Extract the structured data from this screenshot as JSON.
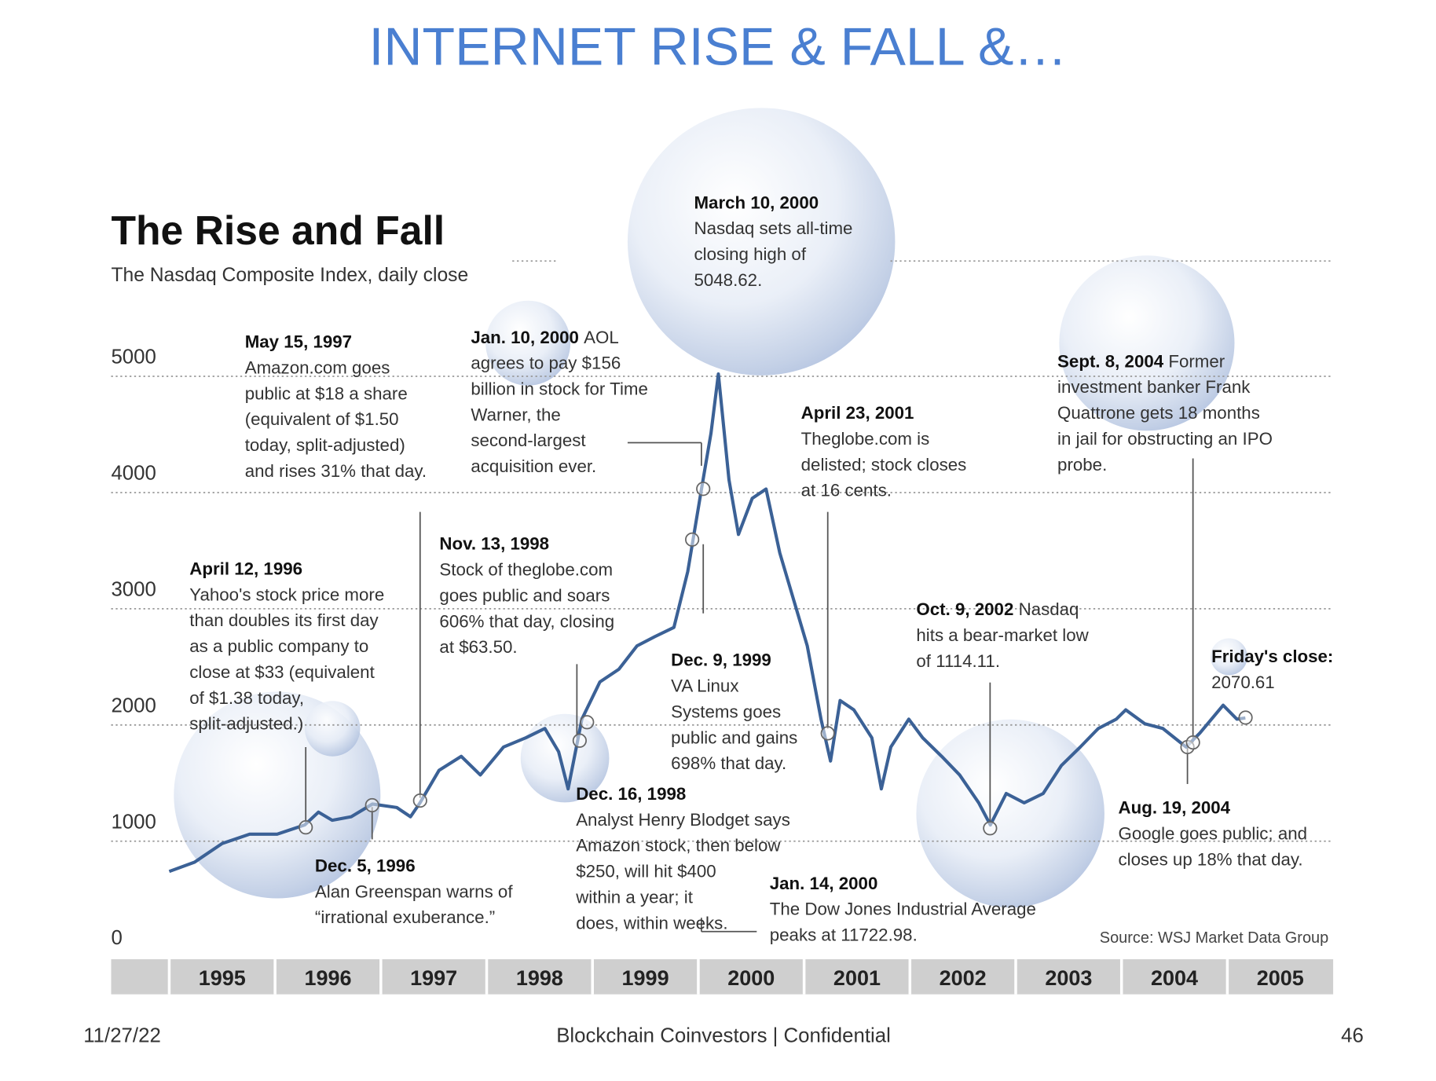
{
  "slide": {
    "title": "INTERNET RISE & FALL &…",
    "date": "11/27/22",
    "footer": "Blockchain Coinvestors | Confidential",
    "page": "46"
  },
  "chart_data": {
    "type": "line",
    "title": "The Rise and Fall",
    "subtitle": "The Nasdaq Composite Index, daily close",
    "source": "Source: WSJ Market Data Group",
    "x": [
      1995.0,
      1995.24,
      1995.5,
      1995.76,
      1996.02,
      1996.28,
      1996.41,
      1996.54,
      1996.72,
      1996.92,
      1997.15,
      1997.28,
      1997.37,
      1997.55,
      1997.76,
      1997.94,
      1998.16,
      1998.37,
      1998.55,
      1998.68,
      1998.77,
      1998.9,
      1999.07,
      1999.25,
      1999.42,
      1999.59,
      1999.77,
      1999.9,
      2000.03,
      2000.12,
      2000.19,
      2000.29,
      2000.38,
      2000.51,
      2000.64,
      2000.77,
      2000.9,
      2001.03,
      2001.16,
      2001.25,
      2001.34,
      2001.47,
      2001.64,
      2001.73,
      2001.82,
      2001.99,
      2002.12,
      2002.3,
      2002.47,
      2002.65,
      2002.76,
      2002.91,
      2003.08,
      2003.26,
      2003.43,
      2003.61,
      2003.78,
      2003.95,
      2004.04,
      2004.22,
      2004.39,
      2004.61,
      2004.74,
      2004.96,
      2005.09,
      2005.17
    ],
    "values": [
      740,
      820,
      980,
      1060,
      1060,
      1140,
      1250,
      1180,
      1210,
      1320,
      1290,
      1210,
      1330,
      1610,
      1730,
      1570,
      1810,
      1890,
      1970,
      1770,
      1450,
      2050,
      2370,
      2480,
      2680,
      2760,
      2840,
      3320,
      4030,
      4510,
      5020,
      4110,
      3640,
      3950,
      4030,
      3480,
      3080,
      2680,
      2050,
      1690,
      2210,
      2130,
      1890,
      1450,
      1810,
      2050,
      1890,
      1730,
      1570,
      1330,
      1140,
      1410,
      1330,
      1410,
      1650,
      1810,
      1970,
      2050,
      2130,
      2010,
      1970,
      1810,
      1930,
      2170,
      2050,
      2060
    ],
    "color": "#3b6196",
    "xlim": [
      1995,
      2006
    ],
    "xticks": [
      1995,
      1996,
      1997,
      1998,
      1999,
      2000,
      2001,
      2002,
      2003,
      2004,
      2005
    ],
    "ylim": [
      0,
      5000
    ],
    "yticks": [
      0,
      1000,
      2000,
      3000,
      4000,
      5000
    ],
    "grid": true,
    "annotations": [
      {
        "date": "May 15, 1997",
        "lines": [
          "Amazon.com goes",
          "public at $18 a share",
          "(equivalent of $1.50",
          "today, split-adjusted)",
          "and rises 31% that day."
        ]
      },
      {
        "date": "Jan. 10, 2000",
        "lead": "AOL",
        "lines": [
          "agrees to pay $156",
          "billion in stock for Time",
          "Warner, the",
          "second-largest",
          "acquisition ever."
        ]
      },
      {
        "date": "March 10, 2000",
        "lines": [
          "Nasdaq sets all-time",
          "closing high of",
          "5048.62."
        ]
      },
      {
        "date": "April 23, 2001",
        "lines": [
          "Theglobe.com is",
          "delisted; stock closes",
          "at 16 cents."
        ]
      },
      {
        "date": "Sept. 8, 2004",
        "lead": "Former",
        "lines": [
          "investment banker Frank",
          "Quattrone gets 18 months",
          "in jail for obstructing an IPO",
          "probe."
        ]
      },
      {
        "date": "Nov. 13, 1998",
        "lines": [
          "Stock of theglobe.com",
          "goes public and soars",
          "606% that day, closing",
          "at $63.50."
        ]
      },
      {
        "date": "April 12, 1996",
        "lines": [
          "Yahoo's stock price more",
          "than doubles its first day",
          "as a public company to",
          "close at $33 (equivalent",
          "of $1.38 today,",
          "split-adjusted.)"
        ]
      },
      {
        "date": "Oct. 9, 2002",
        "lead": "Nasdaq",
        "lines": [
          "hits a bear-market low",
          "of 1114.11."
        ]
      },
      {
        "date": "Friday's close:",
        "lines": [
          "2070.61"
        ]
      },
      {
        "date": "Dec. 9, 1999",
        "lines": [
          "VA Linux",
          "Systems  goes",
          "public and gains",
          "698% that day."
        ]
      },
      {
        "date": "Dec. 16, 1998",
        "lines": [
          "Analyst Henry Blodget says",
          "Amazon stock, then below",
          "$250, will hit $400",
          "within a year; it",
          "does, within weeks."
        ]
      },
      {
        "date": "Aug. 19, 2004",
        "lines": [
          "Google goes public; and",
          "closes up 18% that day."
        ]
      },
      {
        "date": "Dec. 5, 1996",
        "lines": [
          "Alan Greenspan warns of",
          "“irrational exuberance.”"
        ]
      },
      {
        "date": "Jan. 14, 2000",
        "lines": [
          "The Dow Jones Industrial Average",
          "peaks at 11722.98."
        ]
      }
    ]
  }
}
